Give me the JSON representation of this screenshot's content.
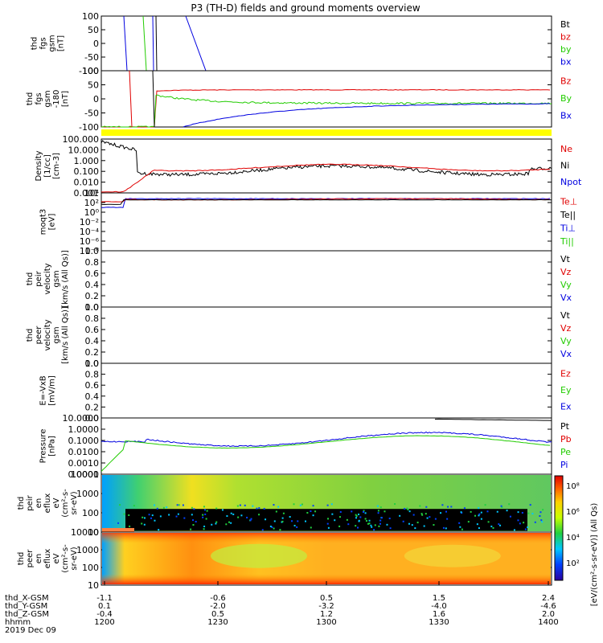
{
  "title": "P3 (TH-D) fields and ground moments overview",
  "colors": {
    "black": "#000000",
    "red": "#e00000",
    "green": "#22cc00",
    "blue": "#0000e0",
    "yellow": "#ffff00"
  },
  "panels": [
    {
      "id": "fgs",
      "ylabel": [
        "thd",
        "fgs",
        "gsm",
        "[nT]"
      ],
      "ylim": [
        -100,
        100
      ],
      "yticks": [
        "100",
        "50",
        "0",
        "-50",
        "-100"
      ],
      "legend": [
        {
          "text": "Bt",
          "color": "black"
        },
        {
          "text": "bz",
          "color": "red"
        },
        {
          "text": "by",
          "color": "green"
        },
        {
          "text": "bx",
          "color": "blue"
        }
      ]
    },
    {
      "id": "fgs_dsl",
      "ylabel": [
        "thd",
        "fgs",
        "gsm",
        "-180",
        "[nT]"
      ],
      "ylim": [
        -125,
        100
      ],
      "yticks": [
        "100",
        "50",
        "0",
        "-50",
        "-100"
      ],
      "legend": [
        {
          "text": "Bz",
          "color": "red"
        },
        {
          "text": "By",
          "color": "green"
        },
        {
          "text": "Bx",
          "color": "blue"
        }
      ],
      "status_bar_color": "yellow"
    },
    {
      "id": "density",
      "ylabel": [
        "Density",
        "[1/cc]",
        "[cm-3]"
      ],
      "yticks": [
        "100.000",
        "10.000",
        "1.000",
        "0.100",
        "0.010",
        "0.001"
      ],
      "scale": "log",
      "legend": [
        {
          "text": "Ne",
          "color": "red"
        },
        {
          "text": "Ni",
          "color": "black"
        },
        {
          "text": "Npot",
          "color": "blue"
        }
      ]
    },
    {
      "id": "temperature",
      "ylabel": [
        "moqt3",
        "[eV]"
      ],
      "yticks": [
        "10⁴",
        "10²",
        "10⁰",
        "10⁻²",
        "10⁻⁴",
        "10⁻⁶",
        "10⁻⁸"
      ],
      "scale": "log",
      "legend": [
        {
          "text": "Te⊥",
          "color": "red"
        },
        {
          "text": "Te||",
          "color": "black"
        },
        {
          "text": "Ti⊥",
          "color": "blue"
        },
        {
          "text": "Ti||",
          "color": "green"
        }
      ]
    },
    {
      "id": "vi",
      "ylabel": [
        "thd",
        "peir",
        "velocity",
        "gsm",
        "[km/s (All Qs)]"
      ],
      "ylim": [
        0,
        1
      ],
      "yticks": [
        "1.0",
        "0.8",
        "0.6",
        "0.4",
        "0.2",
        "0.0"
      ],
      "legend": [
        {
          "text": "Vt",
          "color": "black"
        },
        {
          "text": "Vz",
          "color": "red"
        },
        {
          "text": "Vy",
          "color": "green"
        },
        {
          "text": "Vx",
          "color": "blue"
        }
      ]
    },
    {
      "id": "ve",
      "ylabel": [
        "thd",
        "peer",
        "velocity",
        "gsm",
        "[km/s (All Qs)]"
      ],
      "ylim": [
        0,
        1
      ],
      "yticks": [
        "1.0",
        "0.8",
        "0.6",
        "0.4",
        "0.2",
        "0.0"
      ],
      "legend": [
        {
          "text": "Vt",
          "color": "black"
        },
        {
          "text": "Vz",
          "color": "red"
        },
        {
          "text": "Vy",
          "color": "green"
        },
        {
          "text": "Vx",
          "color": "blue"
        }
      ]
    },
    {
      "id": "efield",
      "ylabel": [
        "E=-VxB",
        "[mV/m]"
      ],
      "ylim": [
        0,
        1
      ],
      "yticks": [
        "1.0",
        "0.8",
        "0.6",
        "0.4",
        "0.2",
        "0.0"
      ],
      "legend": [
        {
          "text": "Ez",
          "color": "red"
        },
        {
          "text": "Ey",
          "color": "green"
        },
        {
          "text": "Ex",
          "color": "blue"
        }
      ]
    },
    {
      "id": "pressure",
      "ylabel": [
        "Pressure",
        "[nPa]"
      ],
      "yticks": [
        "10.0000",
        "1.0000",
        "0.1000",
        "0.0100",
        "0.0010",
        "0.0001"
      ],
      "scale": "log",
      "legend": [
        {
          "text": "Pt",
          "color": "black"
        },
        {
          "text": "Pb",
          "color": "red"
        },
        {
          "text": "Pe",
          "color": "green"
        },
        {
          "text": "Pi",
          "color": "blue"
        }
      ]
    },
    {
      "id": "spec_ion",
      "ylabel": [
        "thd",
        "peir",
        "en",
        "eflux",
        "eV",
        "(cm²-s-",
        "sr-eV)"
      ],
      "yticks": [
        "10000",
        "1000",
        "100",
        "10"
      ],
      "scale": "log",
      "type": "heatmap"
    },
    {
      "id": "spec_ele",
      "ylabel": [
        "thd",
        "peer",
        "en",
        "eflux",
        "eV",
        "(cm²-s-",
        "sr-eV)"
      ],
      "yticks": [
        "10000",
        "1000",
        "100",
        "10"
      ],
      "scale": "log",
      "type": "heatmap"
    }
  ],
  "colorbar": {
    "ticks": [
      "10⁸",
      "10⁶",
      "10⁴",
      "10²"
    ],
    "label": "[eV/(cm²-s-sr-eV)] (All Qs)"
  },
  "xaxis": {
    "rows": [
      {
        "label": "thd_X-GSM",
        "values": [
          "-1.1",
          "-0.6",
          "0.5",
          "1.5",
          "2.4"
        ]
      },
      {
        "label": "thd_Y-GSM",
        "values": [
          "0.1",
          "-2.0",
          "-3.2",
          "-4.0",
          "-4.6"
        ]
      },
      {
        "label": "thd_Z-GSM",
        "values": [
          "-0.4",
          "0.5",
          "1.2",
          "1.6",
          "2.0"
        ]
      },
      {
        "label": "hhmm",
        "values": [
          "1200",
          "1230",
          "1300",
          "1330",
          "1400"
        ]
      }
    ],
    "date": "2019 Dec 09"
  },
  "chart_data": {
    "type": "line",
    "title": "P3 (TH-D) fields and ground moments overview",
    "x": [
      "1200",
      "1230",
      "1300",
      "1330",
      "1400"
    ],
    "xlabel": "hhmm",
    "series": [
      {
        "name": "Bz",
        "values": [
          -120,
          25,
          22,
          20,
          20
        ]
      },
      {
        "name": "By",
        "values": [
          -120,
          -5,
          -8,
          -5,
          -5
        ]
      },
      {
        "name": "Bx",
        "values": [
          -120,
          -60,
          -20,
          -8,
          -5
        ]
      },
      {
        "name": "Ni",
        "values": [
          100,
          0.2,
          0.3,
          0.2,
          0.5
        ]
      },
      {
        "name": "Ne",
        "values": [
          0.001,
          0.5,
          0.4,
          0.3,
          0.5
        ]
      },
      {
        "name": "Pt",
        "values": [
          0.01,
          0.02,
          0.05,
          0.04,
          5
        ]
      },
      {
        "name": "Pi",
        "values": [
          0.01,
          0.02,
          0.05,
          0.05,
          0.1
        ]
      },
      {
        "name": "Pe",
        "values": [
          0.0001,
          0.01,
          0.01,
          0.005,
          0.005
        ]
      }
    ]
  }
}
